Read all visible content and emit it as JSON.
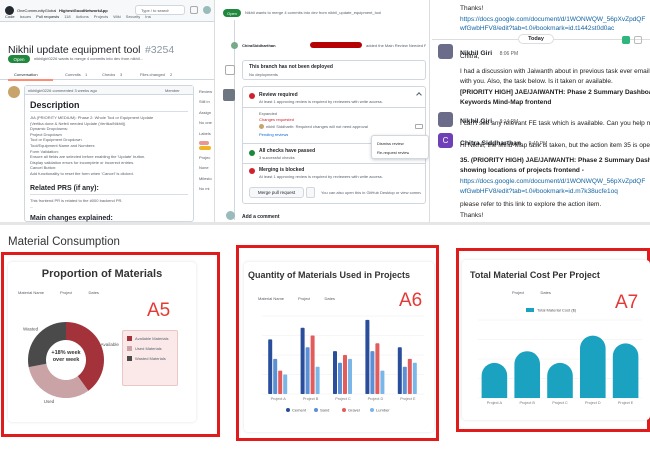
{
  "panel1": {
    "org": "OneCommunityGlobal",
    "repo": "HighestGoodNetworkApp",
    "search_placeholder": "Type / to search",
    "nav": [
      "Code",
      "Issues",
      "Pull requests",
      "118",
      "Actions",
      "Projects",
      "Wiki",
      "Security",
      "Insi"
    ],
    "title": "Nikhil update equipment tool",
    "number": "#3254",
    "status": "Open",
    "meta": "nikhilgiri0226 wants to merge 4 commits into dev from nikhil...",
    "tabs": [
      "Conversation",
      "Commits",
      "1",
      "Checks",
      "3",
      "Files changed",
      "2"
    ],
    "comment_header": "nikhilgiri0226 commented 3 weeks ago",
    "member": "Member",
    "description_heading": "Description",
    "desc_lines": [
      "JIA (PRIORITY MEDIUM): Phase 2: Whole Tool or Equipment Update",
      "(Vertika done & Nefeli needed Update (Vertika/Nikhil))",
      "Dynamic Dropdowns:",
      "Project Dropdown",
      "Tool or Equipment Dropdown",
      "Tool/Equipment Name and Numbers",
      "Form Validation:",
      "Ensure all fields are selected before enabling the 'Update' button.",
      "Display validation errors for incomplete or incorrect entries.",
      "Cancel Button:",
      "Add functionality to reset the form when 'Cancel' is clicked."
    ],
    "related_heading": "Related PRS (if any):",
    "related_text": "This frontend PR is related to the #000 backend PR.",
    "related_dots": "...",
    "main_changes": "Main changes explained:",
    "side_labels": [
      "Review",
      "Still in",
      "Assign",
      "No one",
      "Labels",
      "None",
      "Projec",
      "None",
      "Milesto",
      "No mi"
    ]
  },
  "panel2": {
    "badge": "Open",
    "title_line": "Nikhil wants to merge 4 commits into dev from nikhil_update_equipment_tool",
    "commit_author": "ChiraSiddharthan",
    "commit_text": "added the Main Review Needed PR label",
    "branch_msg_title": "This branch has not been deployed",
    "branch_msg_sub": "No deployments",
    "review_title": "Review required",
    "review_sub": "At least 1 approving review is required by reviewers with write access.",
    "expand_hdr": "Expanded",
    "changes_req": "Changes requested",
    "reviewer_line": "nikhil Siddharth: Required changes will not need approval",
    "pending": "Pending reviews",
    "menu_items": [
      "Dismiss review",
      "Re-request review"
    ],
    "conflicts_title": "All checks have passed",
    "conflicts_sub": "3 successful checks",
    "merge_title": "Merging is blocked",
    "merge_sub": "At least 1 approving review is required by reviewers with write access.",
    "merge_btn": "Merge pull request",
    "merge_hint": "You can also open this in GitHub Desktop or view command line instructions.",
    "add_comment": "Add a comment"
  },
  "panel3": {
    "thanks": "Thanks!",
    "link1": "https://docs.google.com/document/d/1WONWQW_56pXvZpdQF",
    "link1b": "wfGwbHFV8/edit?tab=t.0#bookmark=id.t1442st0d0ac",
    "today": "Today",
    "msg1_name": "Nikhil Giri",
    "msg1_time": "8:06 PM",
    "msg1_lines": [
      "Chitra,",
      "",
      "I had a discussion with Jaiwanth about in previous task ever email",
      "with you. Also, the task below. Is it taken or available.",
      "[PRIORITY HIGH] JAE/JAIWANTH: Phase 2 Summary Dashboard:",
      "Keywords Mind-Map frontend"
    ],
    "msg2_name": "Nikhil Giri",
    "msg2_time": "8:14 PM",
    "msg2_text": "I can't see any relevant FE task which is available. Can you help me",
    "msg3_name": "Chitra Siddharthan",
    "msg3_time": "9:45 PM",
    "msg3_lines": [
      "Hi Nikhil, the Mind-Map task is taken, but the action item 35 is ope",
      "35. (PRIORITY HIGH) JAE/JAIWANTH: Phase 2 Summary Dashbo",
      "showing locations of projects frontend -",
      "https://docs.google.com/document/d/1WONWQW_56pXvZpdQF",
      "wfGwbHFV8/edit?tab=t.0#bookmark=id.m7k38ucfe1oq",
      "please refer to this link to explore the action item.",
      "Thanks!"
    ]
  },
  "bottom": {
    "section_title": "Material Consumption",
    "a5": {
      "label": "A5",
      "title": "Proportion of Materials",
      "filters": [
        "Material Name",
        "Project",
        "Dates"
      ],
      "center_lines": [
        "+18% week",
        "over week"
      ],
      "legend": [
        "Available Materials",
        "Used Materials",
        "Wasted Materials"
      ],
      "slices": [
        {
          "label": "Available",
          "value": 40,
          "color": "#a4323a"
        },
        {
          "label": "Used",
          "value": 32,
          "color": "#c9a3a6"
        },
        {
          "label": "Wasted",
          "value": 28,
          "color": "#4a4a4a"
        }
      ]
    },
    "a6": {
      "label": "A6",
      "title": "Quantity of Materials Used in Projects",
      "filters": [
        "Material Name",
        "Project",
        "Dates"
      ],
      "legend": [
        "Cement",
        "Sand",
        "Gravel",
        "Lumber"
      ],
      "colors": [
        "#2a4d9c",
        "#5b8fd6",
        "#e25c5c",
        "#7bb6e8"
      ]
    },
    "a7": {
      "label": "A7",
      "title": "Total Material Cost Per Project",
      "filters": [
        "Project",
        "Dates"
      ],
      "legend": "Total Material Cost ($)",
      "color": "#1aa2c0"
    }
  },
  "chart_data": [
    {
      "type": "pie",
      "title": "Proportion of Materials",
      "categories": [
        "Available",
        "Used",
        "Wasted"
      ],
      "values": [
        40,
        32,
        28
      ]
    },
    {
      "type": "bar",
      "title": "Quantity of Materials Used in Projects",
      "categories": [
        "Project A",
        "Project B",
        "Project C",
        "Project D",
        "Project E"
      ],
      "series": [
        {
          "name": "Cement",
          "values": [
            70,
            85,
            55,
            95,
            60
          ]
        },
        {
          "name": "Sand",
          "values": [
            45,
            60,
            40,
            55,
            35
          ]
        },
        {
          "name": "Gravel",
          "values": [
            30,
            75,
            50,
            65,
            45
          ]
        },
        {
          "name": "Lumber",
          "values": [
            25,
            35,
            45,
            30,
            40
          ]
        }
      ],
      "ylim": [
        0,
        100
      ]
    },
    {
      "type": "bar",
      "title": "Total Material Cost Per Project",
      "categories": [
        "Project A",
        "Project B",
        "Project C",
        "Project D",
        "Project E"
      ],
      "values": [
        45,
        60,
        45,
        80,
        70
      ],
      "ylim": [
        0,
        100
      ]
    }
  ]
}
